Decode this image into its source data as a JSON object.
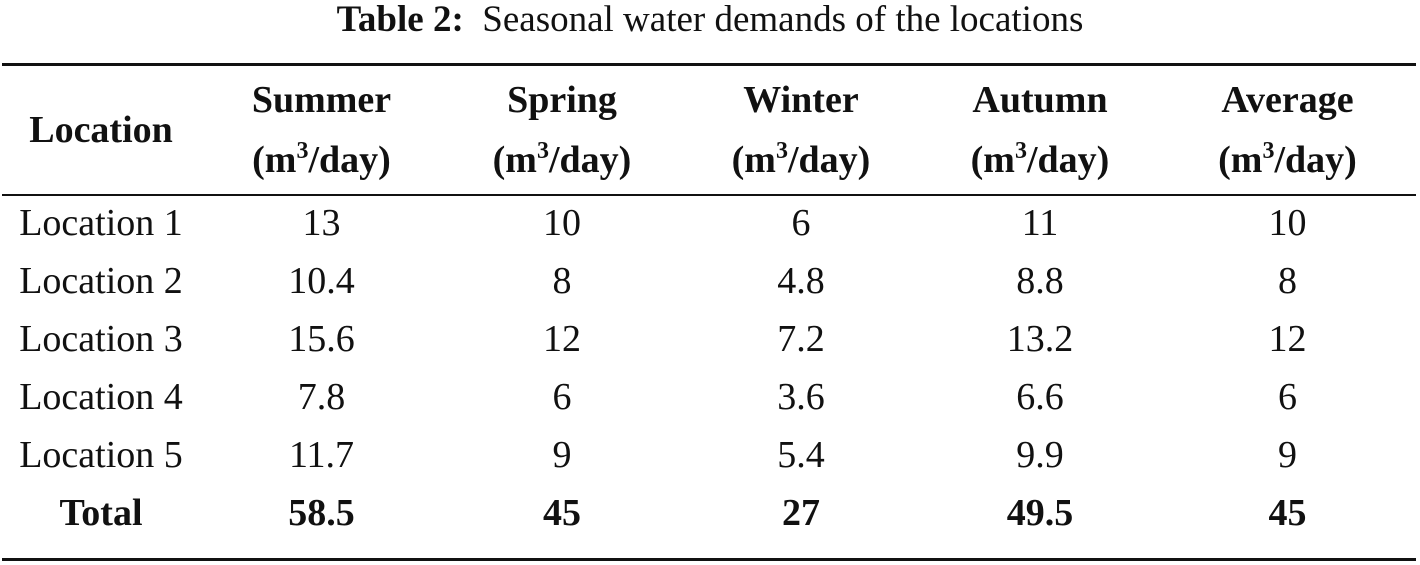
{
  "caption": {
    "label": "Table 2:",
    "text": "Seasonal water demands of the locations"
  },
  "table": {
    "headers": [
      {
        "name": "Location",
        "unit_pre": "",
        "unit_sup": "",
        "unit_post": ""
      },
      {
        "name": "Summer",
        "unit_pre": "(m",
        "unit_sup": "3",
        "unit_post": "/day)"
      },
      {
        "name": "Spring",
        "unit_pre": "(m",
        "unit_sup": "3",
        "unit_post": "/day)"
      },
      {
        "name": "Winter",
        "unit_pre": "(m",
        "unit_sup": "3",
        "unit_post": "/day)"
      },
      {
        "name": "Autumn",
        "unit_pre": "(m",
        "unit_sup": "3",
        "unit_post": "/day)"
      },
      {
        "name": "Average",
        "unit_pre": "(m",
        "unit_sup": "3",
        "unit_post": "/day)"
      }
    ],
    "rows": [
      [
        "Location 1",
        "13",
        "10",
        "6",
        "11",
        "10"
      ],
      [
        "Location 2",
        "10.4",
        "8",
        "4.8",
        "8.8",
        "8"
      ],
      [
        "Location 3",
        "15.6",
        "12",
        "7.2",
        "13.2",
        "12"
      ],
      [
        "Location 4",
        "7.8",
        "6",
        "3.6",
        "6.6",
        "6"
      ],
      [
        "Location 5",
        "11.7",
        "9",
        "5.4",
        "9.9",
        "9"
      ]
    ],
    "total": [
      "Total",
      "58.5",
      "45",
      "27",
      "49.5",
      "45"
    ]
  }
}
